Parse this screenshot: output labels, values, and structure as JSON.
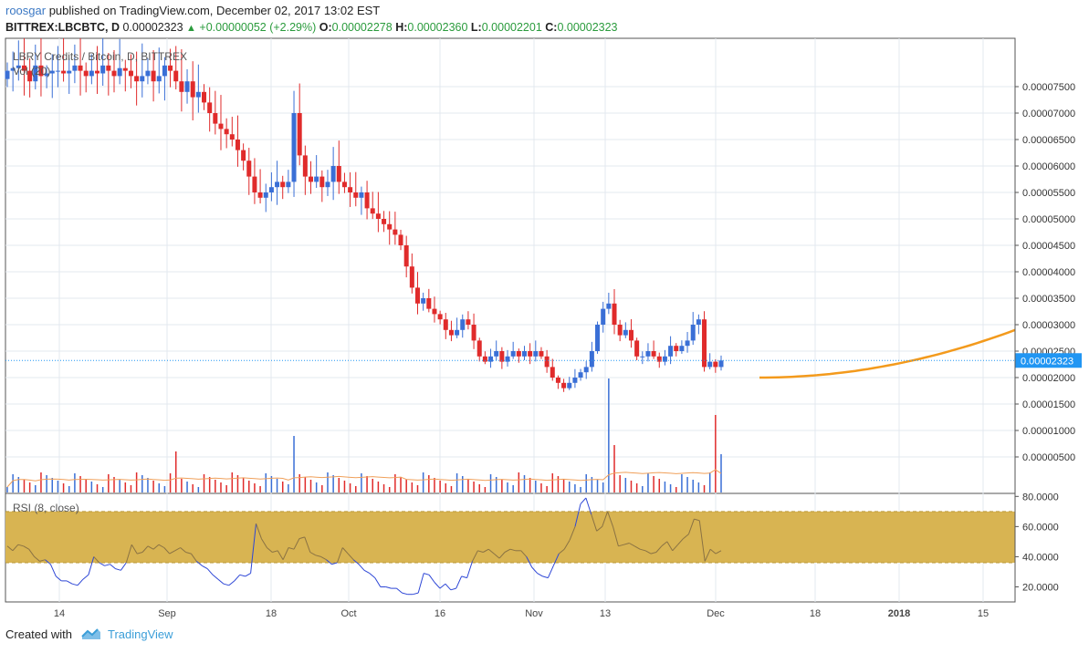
{
  "header": {
    "author": "roosgar",
    "published_text": "published on TradingView.com, December 02, 2017 13:02 EST",
    "symbol": "BITTREX:LBCBTC, D",
    "last": "0.00002323",
    "change": "+0.00000052 (+2.29%)",
    "o_label": "O:",
    "o_value": "0.00002278",
    "h_label": "H:",
    "h_value": "0.00002360",
    "l_label": "L:",
    "l_value": "0.00002201",
    "c_label": "C:",
    "c_value": "0.00002323"
  },
  "footer": {
    "created_with": "Created with",
    "brand": "TradingView"
  },
  "colors": {
    "up": "#3a6fd6",
    "down": "#e02b2b",
    "rsi_band": "#d8b452",
    "rsi_line_in": "#8a7243",
    "rsi_line_out": "#2d46d6",
    "projection": "#f39a1c",
    "last_price_label": "#2196f3"
  },
  "chart_data": [
    {
      "type": "candlestick",
      "title": "LBRY Credits / Bitcoin, D, BITTREX",
      "volume_label": "Vol (20)",
      "ylim": [
        3e-07,
        8.1e-06
      ],
      "y_ticks": [
        "0.00007500",
        "0.00007000",
        "0.00006500",
        "0.00006000",
        "0.00005500",
        "0.00005000",
        "0.00004500",
        "0.00004000",
        "0.00003500",
        "0.00003000",
        "0.00002500",
        "0.00002000",
        "0.00001500",
        "0.00001000",
        "0.00000500"
      ],
      "y_tick_values": [
        7.5e-05,
        7e-05,
        6.5e-05,
        6e-05,
        5.5e-05,
        5e-05,
        4.5e-05,
        4e-05,
        3.5e-05,
        3e-05,
        2.5e-05,
        2e-05,
        1.5e-05,
        1e-05,
        5e-06
      ],
      "last_price": "0.00002323",
      "x_ticks": [
        "14",
        "Sep",
        "18",
        "Oct",
        "16",
        "Nov",
        "13",
        "Dec",
        "18",
        "2018",
        "15"
      ],
      "candles_summary": {
        "start_close": 7.8e-05,
        "peak_close": 7.75e-05,
        "early_sep_close": 7.3e-05,
        "mid_sep_close": 5.4e-05,
        "sep18_spike": 7e-05,
        "late_sep_close": 5.7e-05,
        "oct_start_close": 5.5e-05,
        "oct10_close": 3.5e-05,
        "oct16_close": 3e-05,
        "oct25_close": 2.3e-05,
        "nov05_low": 1.7e-05,
        "nov10_high": 3.6e-05,
        "nov13_close": 3.3e-05,
        "nov20_close": 2.4e-05,
        "nov28_high": 3.8e-05,
        "nov30_close": 2.2e-05,
        "dec02_close": 2.323e-05
      },
      "projection": {
        "start_value": 2e-05,
        "end_value": 2.9e-05
      }
    },
    {
      "type": "line",
      "title": "RSI (8, close)",
      "ylim": [
        10,
        82
      ],
      "band": [
        36,
        70
      ],
      "y_ticks": [
        "80.0000",
        "60.0000",
        "40.0000",
        "20.0000"
      ],
      "y_tick_values": [
        80,
        60,
        40,
        20
      ],
      "values": [
        47,
        44,
        48,
        47,
        45,
        40,
        37,
        38,
        35,
        27,
        24,
        24,
        22,
        21,
        25,
        28,
        40,
        36,
        34,
        35,
        32,
        31,
        36,
        48,
        42,
        43,
        47,
        45,
        48,
        46,
        42,
        44,
        46,
        43,
        42,
        37,
        34,
        32,
        28,
        25,
        22,
        21,
        24,
        28,
        27,
        29,
        62,
        52,
        46,
        43,
        44,
        38,
        46,
        45,
        52,
        53,
        43,
        41,
        40,
        38,
        35,
        36,
        46,
        42,
        38,
        35,
        31,
        29,
        26,
        20,
        20,
        19,
        19,
        16,
        15,
        15,
        16,
        29,
        28,
        23,
        19,
        22,
        18,
        19,
        27,
        26,
        37,
        44,
        43,
        45,
        42,
        39,
        43,
        45,
        44,
        44,
        40,
        33,
        29,
        27,
        26,
        34,
        42,
        45,
        51,
        60,
        75,
        79,
        68,
        57,
        60,
        70,
        60,
        47,
        48,
        49,
        47,
        45,
        44,
        42,
        43,
        47,
        50,
        44,
        48,
        52,
        55,
        65,
        64,
        37,
        45,
        42,
        44
      ]
    }
  ]
}
